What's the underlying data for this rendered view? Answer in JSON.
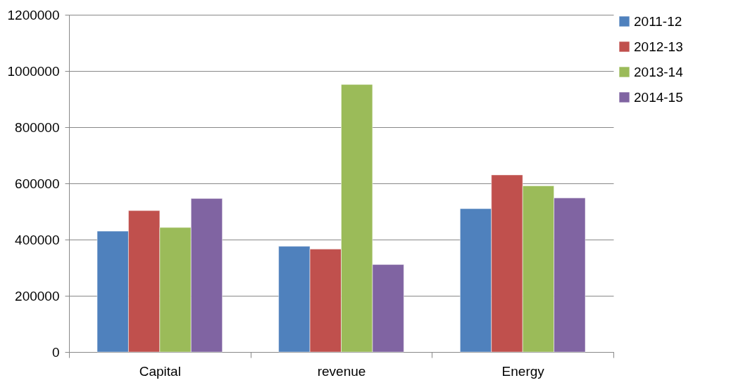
{
  "chart_data": {
    "type": "bar",
    "categories": [
      "Capital",
      "revenue",
      "Energy"
    ],
    "series": [
      {
        "name": "2011-12",
        "color": "#4f81bd",
        "values": [
          430000,
          376000,
          510000
        ]
      },
      {
        "name": "2012-13",
        "color": "#c0504d",
        "values": [
          503000,
          366000,
          630000
        ]
      },
      {
        "name": "2013-14",
        "color": "#9bbb59",
        "values": [
          443000,
          952000,
          591000
        ]
      },
      {
        "name": "2014-15",
        "color": "#8064a2",
        "values": [
          546000,
          311000,
          548000
        ]
      }
    ],
    "ylim": [
      0,
      1200000
    ],
    "yticks": [
      0,
      200000,
      400000,
      600000,
      800000,
      1000000,
      1200000
    ],
    "grid": "y",
    "legend": "right"
  }
}
